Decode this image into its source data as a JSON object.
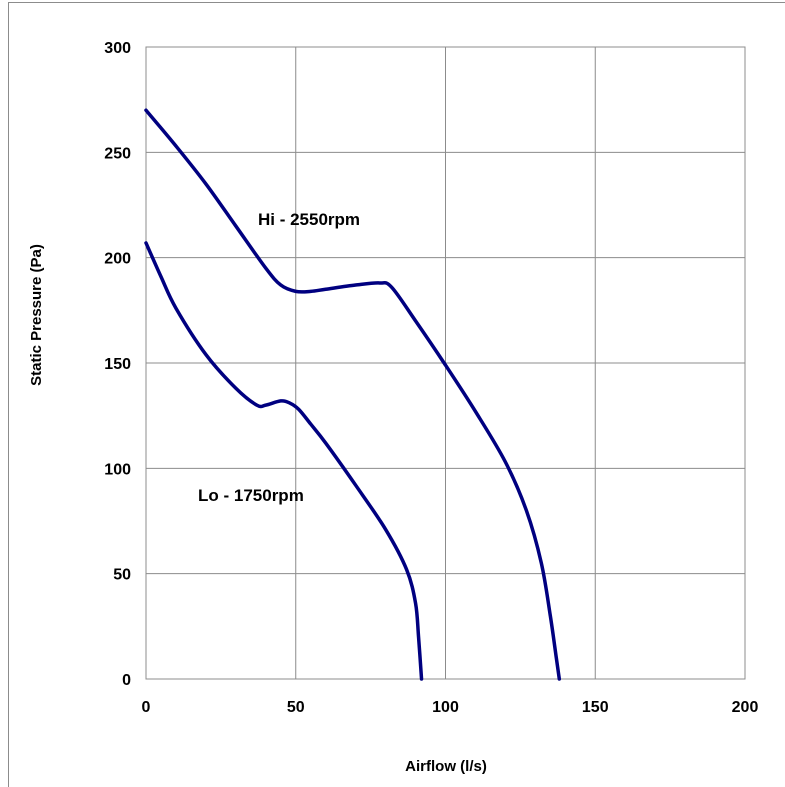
{
  "chart_data": {
    "type": "line",
    "xlabel": "Airflow (l/s)",
    "ylabel": "Static Pressure (Pa)",
    "xlim": [
      0,
      200
    ],
    "ylim": [
      0,
      300
    ],
    "x_ticks": [
      0,
      50,
      100,
      150,
      200
    ],
    "y_ticks": [
      0,
      50,
      100,
      150,
      200,
      250,
      300
    ],
    "grid": true,
    "line_color": "#000080",
    "series": [
      {
        "name": "Hi - 2550rpm",
        "points": [
          [
            0,
            270
          ],
          [
            10,
            253
          ],
          [
            20,
            235
          ],
          [
            30,
            215
          ],
          [
            40,
            195
          ],
          [
            45,
            187
          ],
          [
            50,
            184
          ],
          [
            55,
            184
          ],
          [
            60,
            185
          ],
          [
            70,
            187
          ],
          [
            78,
            188
          ],
          [
            82,
            186
          ],
          [
            90,
            170
          ],
          [
            100,
            149
          ],
          [
            110,
            127
          ],
          [
            120,
            103
          ],
          [
            127,
            80
          ],
          [
            132,
            55
          ],
          [
            135,
            30
          ],
          [
            137,
            10
          ],
          [
            138,
            0
          ]
        ]
      },
      {
        "name": "Lo - 1750rpm",
        "points": [
          [
            0,
            207
          ],
          [
            5,
            191
          ],
          [
            10,
            176
          ],
          [
            20,
            154
          ],
          [
            30,
            138
          ],
          [
            37,
            130
          ],
          [
            40,
            130
          ],
          [
            45,
            132
          ],
          [
            48,
            131
          ],
          [
            51,
            128
          ],
          [
            55,
            121
          ],
          [
            60,
            112
          ],
          [
            70,
            92
          ],
          [
            80,
            71
          ],
          [
            87,
            52
          ],
          [
            90,
            36
          ],
          [
            91,
            20
          ],
          [
            92,
            0
          ]
        ]
      }
    ],
    "annotations": [
      "Hi - 2550rpm",
      "Lo - 1750rpm"
    ]
  }
}
